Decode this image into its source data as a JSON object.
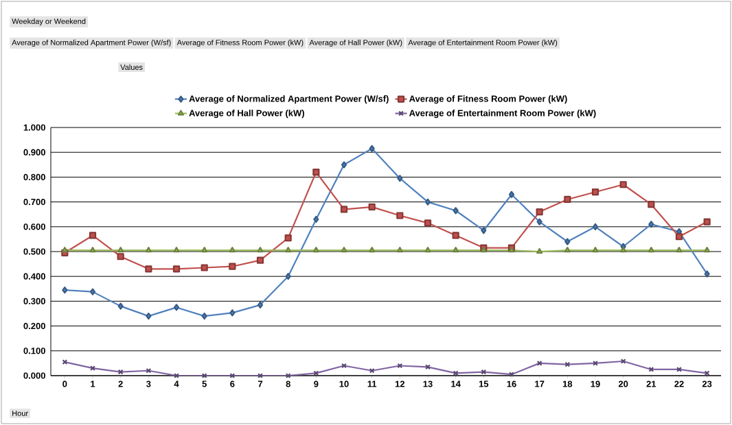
{
  "chart_data": {
    "type": "line",
    "categories": [
      "0",
      "1",
      "2",
      "3",
      "4",
      "5",
      "6",
      "7",
      "8",
      "9",
      "10",
      "11",
      "12",
      "13",
      "14",
      "15",
      "16",
      "17",
      "18",
      "19",
      "20",
      "21",
      "22",
      "23"
    ],
    "series": [
      {
        "name": "Average of Normalized Apartment Power (W/sf)",
        "color": "#4f81bd",
        "marker": "diamond",
        "values": [
          0.345,
          0.338,
          0.28,
          0.24,
          0.275,
          0.24,
          0.253,
          0.285,
          0.4,
          0.63,
          0.85,
          0.915,
          0.795,
          0.7,
          0.665,
          0.585,
          0.73,
          0.62,
          0.54,
          0.6,
          0.52,
          0.61,
          0.58,
          0.41
        ]
      },
      {
        "name": "Average of Fitness Room Power (kW)",
        "color": "#c0504d",
        "marker": "square",
        "values": [
          0.495,
          0.565,
          0.48,
          0.43,
          0.43,
          0.435,
          0.44,
          0.465,
          0.555,
          0.82,
          0.67,
          0.68,
          0.645,
          0.615,
          0.565,
          0.515,
          0.515,
          0.66,
          0.71,
          0.74,
          0.77,
          0.69,
          0.56,
          0.62
        ]
      },
      {
        "name": "Average of Hall Power (kW)",
        "color": "#9bbb59",
        "marker": "triangle",
        "values": [
          0.505,
          0.505,
          0.505,
          0.505,
          0.505,
          0.505,
          0.505,
          0.505,
          0.505,
          0.505,
          0.505,
          0.505,
          0.505,
          0.505,
          0.505,
          0.505,
          0.505,
          0.5,
          0.505,
          0.505,
          0.505,
          0.505,
          0.505,
          0.505
        ]
      },
      {
        "name": "Average of Entertainment Room Power (kW)",
        "color": "#8064a2",
        "marker": "cross",
        "values": [
          0.055,
          0.03,
          0.015,
          0.02,
          0,
          0,
          0,
          0,
          0,
          0.01,
          0.04,
          0.02,
          0.04,
          0.035,
          0.01,
          0.015,
          0.005,
          0.05,
          0.045,
          0.05,
          0.058,
          0.025,
          0.025,
          0.01
        ]
      }
    ],
    "ylim": [
      0,
      1
    ],
    "yticks": [
      {
        "value": 0,
        "label": "0.000"
      },
      {
        "value": 0.1,
        "label": "0.100"
      },
      {
        "value": 0.2,
        "label": "0.200"
      },
      {
        "value": 0.3,
        "label": "0.300"
      },
      {
        "value": 0.4,
        "label": "0.400"
      },
      {
        "value": 0.5,
        "label": "0.500"
      },
      {
        "value": 0.6,
        "label": "0.600"
      },
      {
        "value": 0.7,
        "label": "0.700"
      },
      {
        "value": 0.8,
        "label": "0.800"
      },
      {
        "value": 0.9,
        "label": "0.900"
      },
      {
        "value": 1,
        "label": "1.000"
      }
    ],
    "grid": "y",
    "legend": "top",
    "line_style": "solid",
    "annotations": [
      "Weekday or Weekend",
      "Average of Normalized Apartment Power (W/sf)",
      "Average of Fitness Room Power (kW)",
      "Average of Hall Power (kW)",
      "Average of Entertainment Room Power (kW)",
      "Values",
      "Hour"
    ]
  }
}
